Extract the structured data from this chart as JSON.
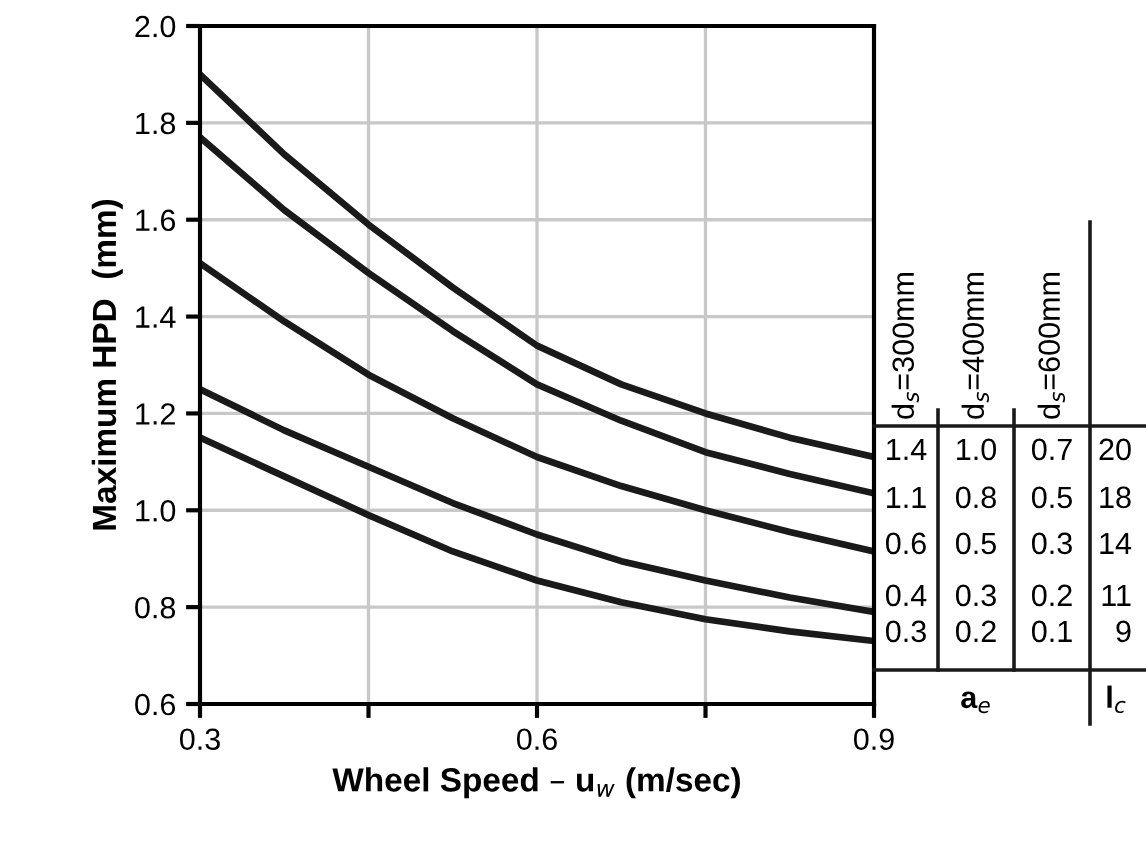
{
  "chart_data": {
    "type": "line",
    "xlabel": "Wheel Speed – u$_{w}$ (m/sec)",
    "ylabel": "Maximum HPD  (mm)",
    "x": [
      0.3,
      0.375,
      0.45,
      0.525,
      0.6,
      0.675,
      0.75,
      0.825,
      0.9
    ],
    "series": [
      {
        "color": "#1a1a1a",
        "values": [
          1.9,
          1.735,
          1.59,
          1.46,
          1.34,
          1.26,
          1.2,
          1.15,
          1.11
        ]
      },
      {
        "color": "#1a1a1a",
        "values": [
          1.77,
          1.62,
          1.49,
          1.37,
          1.26,
          1.185,
          1.12,
          1.075,
          1.035
        ]
      },
      {
        "color": "#1a1a1a",
        "values": [
          1.51,
          1.39,
          1.28,
          1.19,
          1.11,
          1.05,
          1.0,
          0.955,
          0.915
        ]
      },
      {
        "color": "#1a1a1a",
        "values": [
          1.25,
          1.165,
          1.09,
          1.015,
          0.95,
          0.895,
          0.855,
          0.82,
          0.79
        ]
      },
      {
        "color": "#1a1a1a",
        "values": [
          1.15,
          1.07,
          0.99,
          0.915,
          0.855,
          0.81,
          0.775,
          0.75,
          0.73
        ]
      }
    ],
    "xlim": [
      0.3,
      0.9
    ],
    "xticks": [
      0.3,
      {
        "value": 0.45,
        "label": null
      },
      0.6,
      {
        "value": 0.75,
        "label": null
      },
      0.9
    ],
    "ylim": [
      0.6,
      2.0
    ],
    "yticks": [
      0.6,
      0.8,
      {
        "value": 1,
        "label": "1.0"
      },
      1.2,
      1.4,
      1.6,
      1.8,
      {
        "value": 2,
        "label": "2.0"
      }
    ],
    "grid": true,
    "legend": false,
    "marker": "none",
    "line_style": "solid",
    "annotations": [
      "d$_{s}$=300mm",
      "d$_{s}$=400mm",
      "d$_{s}$=600mm",
      "1.4",
      "1.0",
      "0.7",
      "20",
      "1.1",
      "0.8",
      "0.5",
      "18",
      "0.6",
      "0.5",
      "0.3",
      "14",
      "0.4",
      "0.3",
      "0.2",
      "11",
      "0.3",
      "0.2",
      "0.1",
      "9",
      "a$_{e}$",
      "l$_{c}$"
    ]
  }
}
